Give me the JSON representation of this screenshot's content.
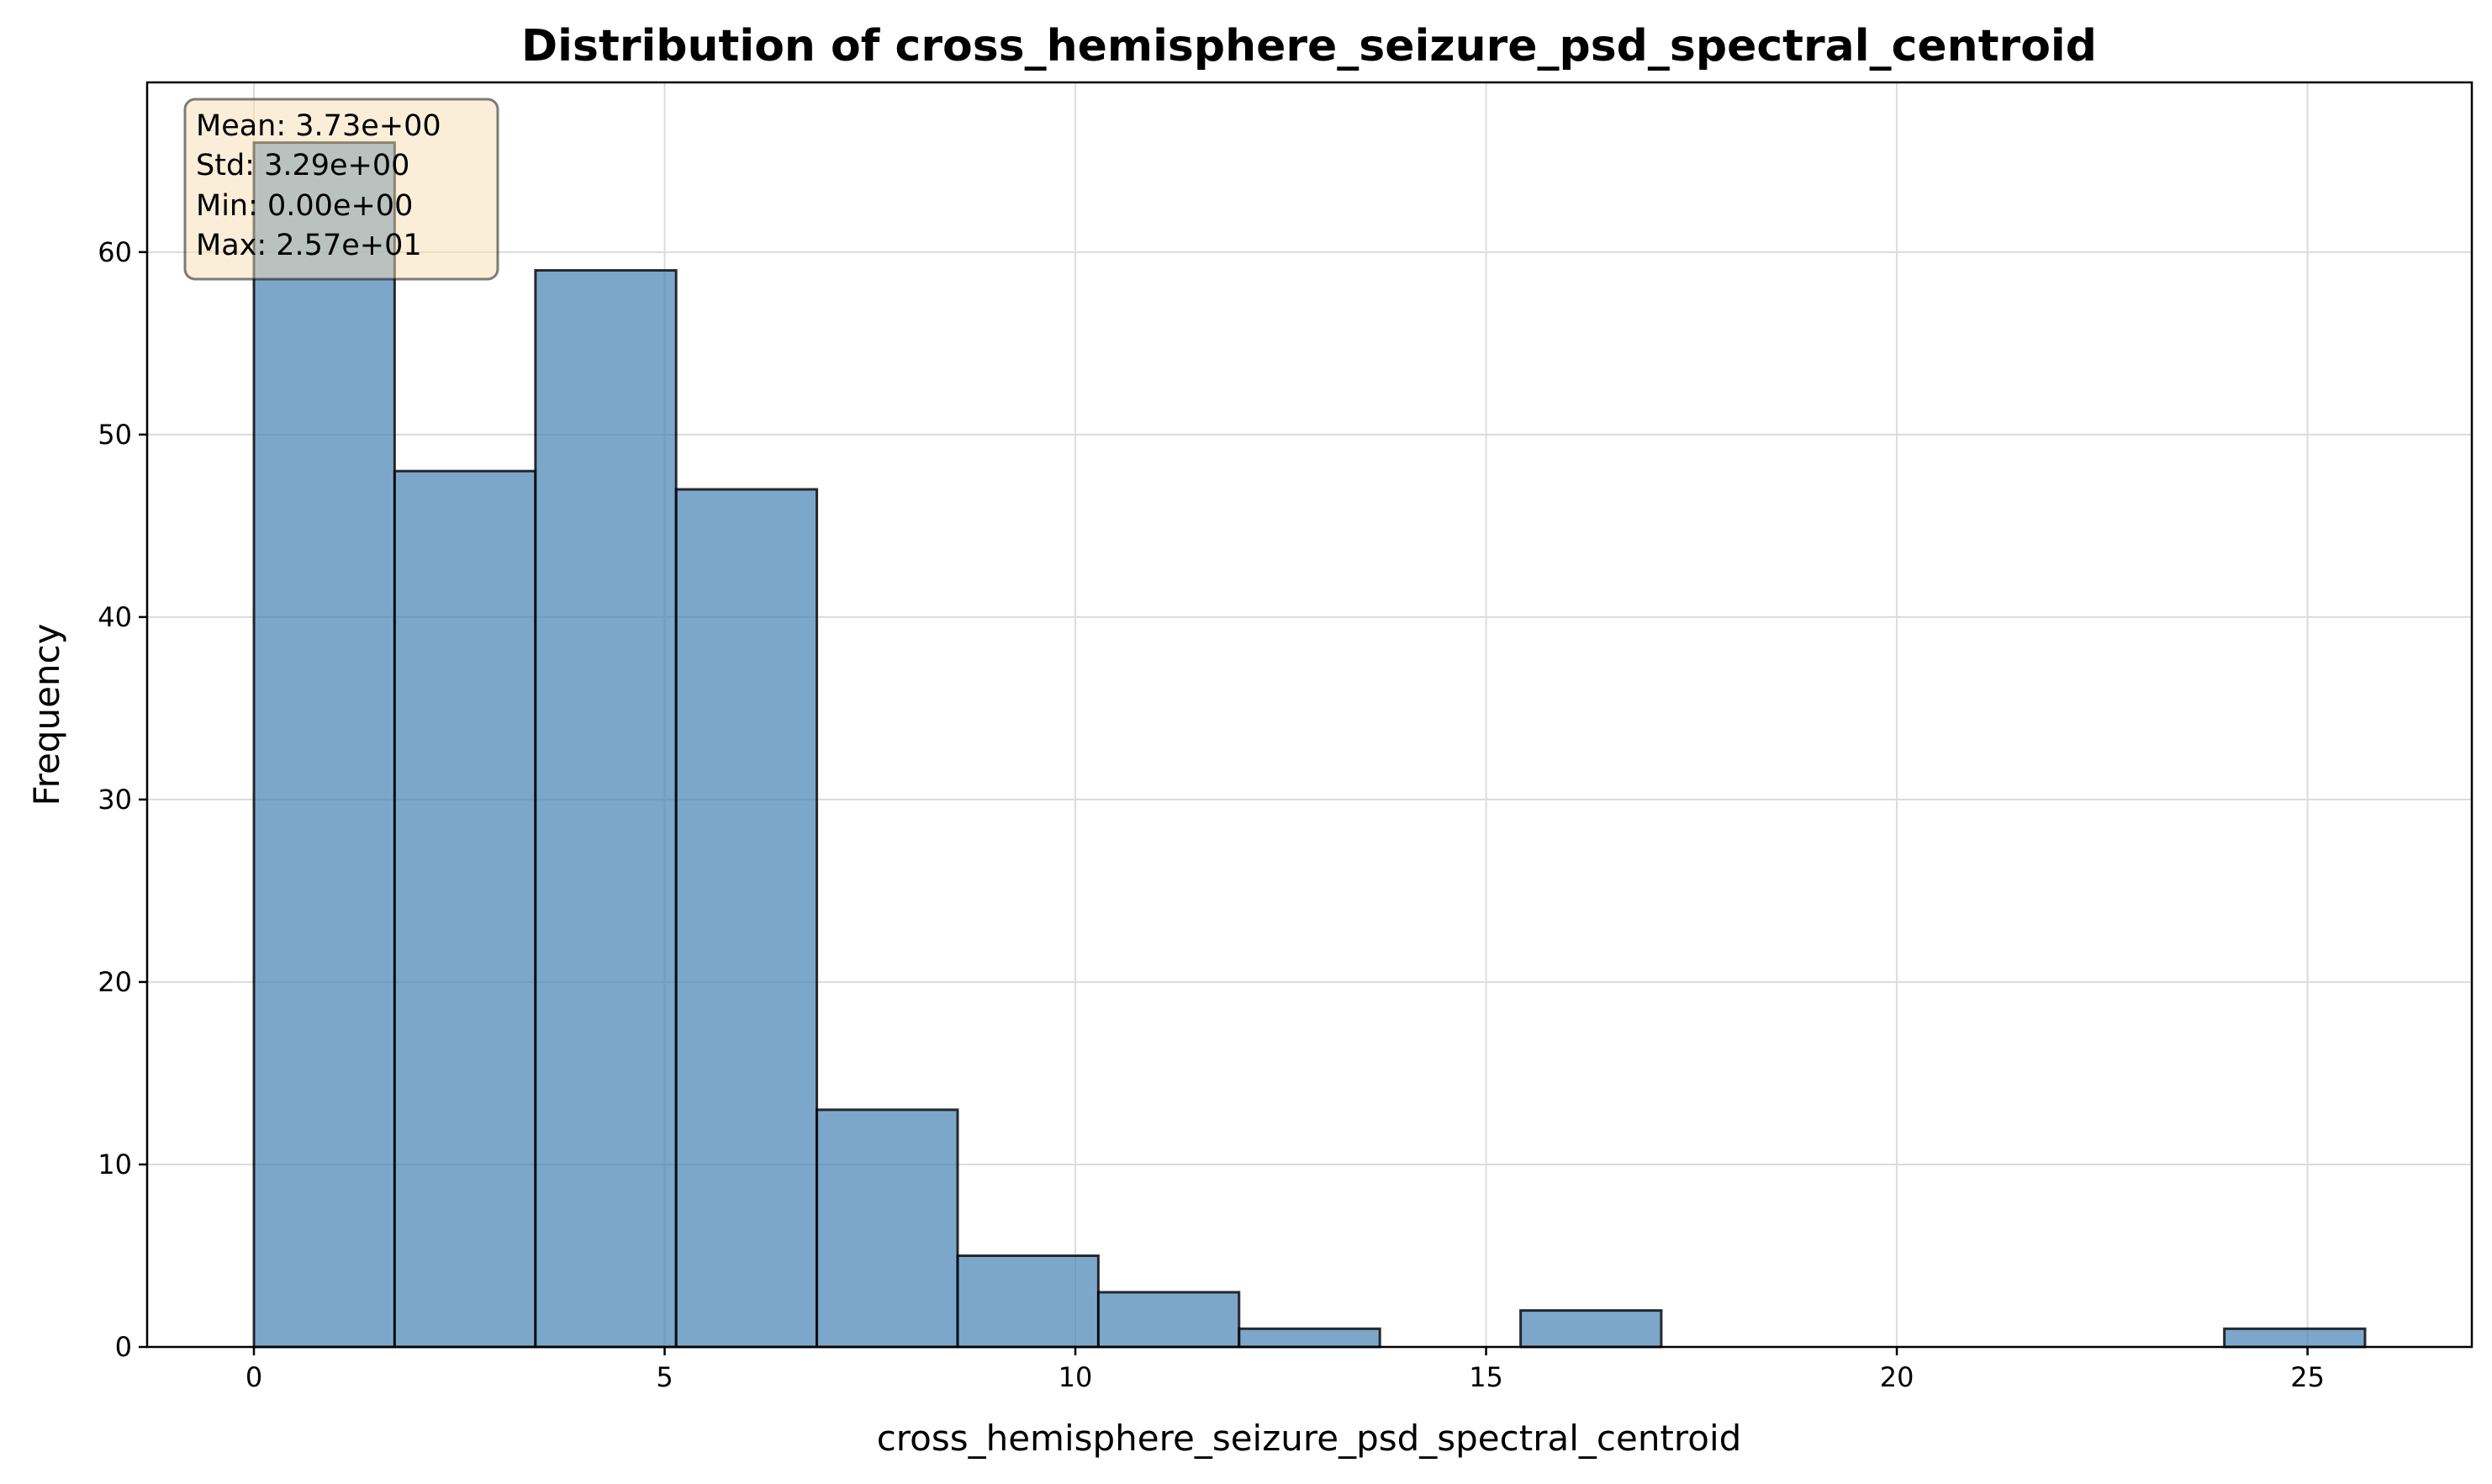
{
  "chart_data": {
    "type": "bar",
    "title": "Distribution of cross_hemisphere_seizure_psd_spectral_centroid",
    "xlabel": "cross_hemisphere_seizure_psd_spectral_centroid",
    "ylabel": "Frequency",
    "xlim": [
      -1.3,
      27.0
    ],
    "ylim": [
      0,
      69.3
    ],
    "xticks": [
      0,
      5,
      10,
      15,
      20,
      25
    ],
    "yticks": [
      0,
      10,
      20,
      30,
      40,
      50,
      60
    ],
    "bin_edges": [
      0.0,
      1.713,
      3.427,
      5.14,
      6.853,
      8.567,
      10.28,
      11.993,
      13.707,
      15.42,
      17.133,
      18.847,
      20.56,
      22.273,
      23.987,
      25.7
    ],
    "counts": [
      66,
      48,
      59,
      47,
      13,
      5,
      3,
      1,
      0,
      2,
      0,
      0,
      0,
      0,
      1
    ],
    "bar_color": "#4682b4",
    "bar_edge_color": "#000000",
    "grid": true,
    "stats_box": {
      "lines": [
        "Mean: 3.73e+00",
        "Std: 3.29e+00",
        "Min: 0.00e+00",
        "Max: 2.57e+01"
      ],
      "position": "top-left",
      "background": "#f5deb3"
    }
  }
}
